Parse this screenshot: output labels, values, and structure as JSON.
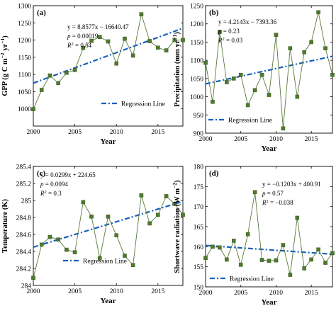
{
  "colors": {
    "series_line": "#5a7a3a",
    "marker": "#4f7a2c",
    "regression": "#1560bd",
    "axis": "#000000"
  },
  "chart_data": [
    {
      "type": "line",
      "panel_label": "(a)",
      "xlabel": "Year",
      "ylabel_parts": [
        "GPP (g C m",
        "−2",
        " yr",
        "−1",
        ")"
      ],
      "xlim": [
        2000,
        2018
      ],
      "ylim": [
        950,
        1300
      ],
      "x_ticks": [
        2000,
        2005,
        2010,
        2015
      ],
      "y_ticks": [
        1000,
        1050,
        1100,
        1150,
        1200,
        1250,
        1300
      ],
      "x": [
        2000,
        2001,
        2002,
        2003,
        2004,
        2005,
        2006,
        2007,
        2008,
        2009,
        2010,
        2011,
        2012,
        2013,
        2014,
        2015,
        2016,
        2017,
        2018
      ],
      "values": [
        999,
        1055,
        1097,
        1075,
        1105,
        1113,
        1177,
        1198,
        1209,
        1196,
        1132,
        1204,
        1155,
        1275,
        1197,
        1178,
        1170,
        1200,
        1200
      ],
      "regression": {
        "slope": 8.8577,
        "intercept": -16640.47
      },
      "annotations": {
        "equation": "y = 8.8577x − 16640.47",
        "p_label": "p",
        "p_value": " = 0.00019",
        "r2_label": "R",
        "r2_value": " = 0.54"
      },
      "legend": "Regression Line",
      "legend_position": "bottom-right"
    },
    {
      "type": "line",
      "panel_label": "(b)",
      "xlabel": "Year",
      "ylabel_parts": [
        "Precipitation (mm yr",
        "−1",
        ")",
        "",
        ""
      ],
      "xlim": [
        2000,
        2018
      ],
      "ylim": [
        900,
        1250
      ],
      "x_ticks": [
        2000,
        2005,
        2010,
        2015
      ],
      "y_ticks": [
        900,
        950,
        1000,
        1050,
        1100,
        1150,
        1200,
        1250
      ],
      "x": [
        2000,
        2001,
        2002,
        2003,
        2004,
        2005,
        2006,
        2007,
        2008,
        2009,
        2010,
        2011,
        2012,
        2013,
        2014,
        2015,
        2016,
        2017,
        2018
      ],
      "values": [
        1093,
        986,
        1178,
        1040,
        1050,
        1060,
        977,
        1018,
        1060,
        1005,
        1170,
        913,
        1133,
        1000,
        1122,
        1150,
        1232,
        1133,
        1060
      ],
      "regression": {
        "slope": 4.2143,
        "intercept": -7393.36
      },
      "annotations": {
        "equation": "y = 4.2143x − 7393.36",
        "p_label": "p",
        "p_value": " = 0.23",
        "r2_label": "R",
        "r2_value": " = 0.03"
      },
      "legend": "Regression Line",
      "legend_position": "bottom-left"
    },
    {
      "type": "line",
      "panel_label": "(c)",
      "xlabel": "Year",
      "ylabel_parts": [
        "Temperature (K)",
        "",
        "",
        "",
        ""
      ],
      "xlim": [
        2000,
        2018
      ],
      "ylim": [
        284,
        285.4
      ],
      "x_ticks": [
        2000,
        2005,
        2010,
        2015
      ],
      "y_ticks": [
        284,
        284.2,
        284.4,
        284.6,
        284.8,
        285,
        285.2,
        285.4
      ],
      "y_tick_labels": [
        "284",
        "284.2",
        "284.4",
        "284.6",
        "284.8",
        "285",
        "285.2",
        "285.4"
      ],
      "x": [
        2000,
        2001,
        2002,
        2003,
        2004,
        2005,
        2006,
        2007,
        2008,
        2009,
        2010,
        2011,
        2012,
        2013,
        2014,
        2015,
        2016,
        2017,
        2018
      ],
      "values": [
        284.09,
        284.48,
        284.57,
        284.54,
        284.42,
        284.39,
        284.98,
        284.81,
        284.32,
        284.81,
        284.59,
        284.35,
        284.24,
        285.06,
        284.73,
        284.83,
        285.05,
        284.96,
        284.83
      ],
      "regression": {
        "slope": 0.0299,
        "intercept": 224.65
      },
      "annotations": {
        "equation": "y = 0.0299x + 224.65",
        "p_label": "p",
        "p_value": " = 0.0094",
        "r2_label": "R",
        "r2_value": " = 0.3"
      },
      "legend": "Regression Line",
      "legend_position": "bottom-right"
    },
    {
      "type": "line",
      "panel_label": "(d)",
      "xlabel": "Year",
      "ylabel_parts": [
        "Shortwave radiation (W m",
        "−2",
        ")",
        "",
        ""
      ],
      "xlim": [
        2000,
        2018
      ],
      "ylim": [
        150,
        180
      ],
      "x_ticks": [
        2000,
        2005,
        2010,
        2015
      ],
      "y_ticks": [
        150,
        155,
        160,
        165,
        170,
        175,
        180
      ],
      "x": [
        2000,
        2001,
        2002,
        2003,
        2004,
        2005,
        2006,
        2007,
        2008,
        2009,
        2010,
        2011,
        2012,
        2013,
        2014,
        2015,
        2016,
        2017,
        2018
      ],
      "values": [
        157.2,
        160.0,
        159.8,
        156.8,
        161.5,
        155.5,
        163.1,
        173.6,
        156.7,
        156.5,
        156.6,
        160.4,
        153.0,
        167.2,
        154.6,
        156.8,
        159.3,
        156.0,
        158.4
      ],
      "regression": {
        "slope": -0.1203,
        "intercept": 400.91
      },
      "annotations": {
        "equation": "y = −0.1203x + 400.91",
        "p_label": "p",
        "p_value": " = 0.57",
        "r2_label": "R",
        "r2_value": " = −0.038"
      },
      "legend": "Regression Line",
      "legend_position": "bottom-left"
    }
  ]
}
